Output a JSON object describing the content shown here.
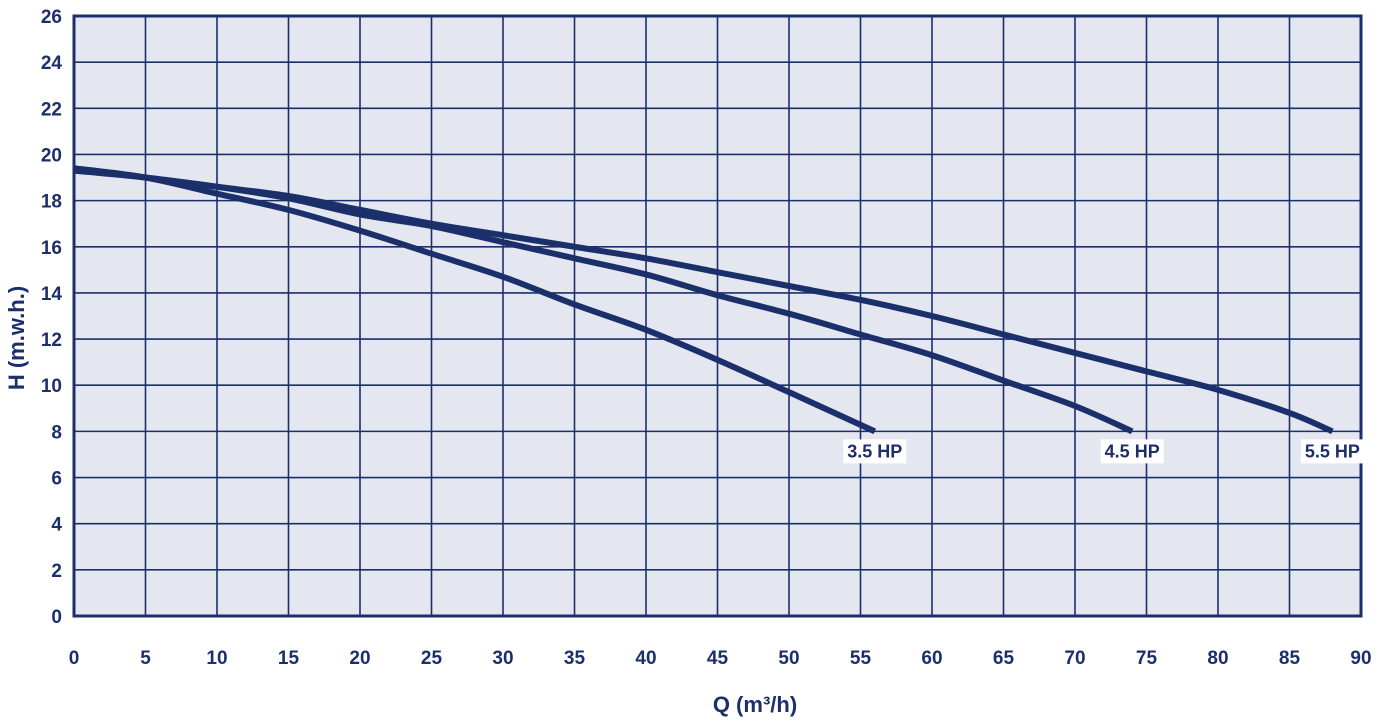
{
  "chart_data": {
    "type": "line",
    "title": "",
    "xlabel": "Q (m³/h)",
    "ylabel": "H (m.w.h.)",
    "xlim": [
      0,
      90
    ],
    "ylim": [
      0,
      26
    ],
    "x_ticks": [
      "0",
      "5",
      "10",
      "15",
      "20",
      "25",
      "30",
      "35",
      "40",
      "45",
      "50",
      "55",
      "60",
      "65",
      "70",
      "75",
      "80",
      "85",
      "90"
    ],
    "y_ticks": [
      "0",
      "2",
      "4",
      "6",
      "8",
      "10",
      "12",
      "14",
      "16",
      "18",
      "20",
      "22",
      "24",
      "26"
    ],
    "grid": true,
    "colors": {
      "line": "#1b2f6b",
      "plot_bg": "#e4e7ef",
      "grid": "#1b2f6b",
      "text": "#1b2f6b"
    },
    "series": [
      {
        "name": "3.5 HP",
        "points": [
          [
            0,
            19.4
          ],
          [
            5,
            19.0
          ],
          [
            10,
            18.3
          ],
          [
            15,
            17.6
          ],
          [
            20,
            16.7
          ],
          [
            25,
            15.7
          ],
          [
            30,
            14.7
          ],
          [
            35,
            13.5
          ],
          [
            40,
            12.4
          ],
          [
            45,
            11.1
          ],
          [
            50,
            9.7
          ],
          [
            56,
            8.0
          ]
        ]
      },
      {
        "name": "4.5 HP",
        "points": [
          [
            0,
            19.4
          ],
          [
            5,
            19.0
          ],
          [
            10,
            18.6
          ],
          [
            15,
            18.1
          ],
          [
            20,
            17.4
          ],
          [
            25,
            16.9
          ],
          [
            30,
            16.2
          ],
          [
            35,
            15.5
          ],
          [
            40,
            14.8
          ],
          [
            45,
            13.9
          ],
          [
            50,
            13.1
          ],
          [
            55,
            12.2
          ],
          [
            60,
            11.3
          ],
          [
            65,
            10.2
          ],
          [
            70,
            9.1
          ],
          [
            74,
            8.0
          ]
        ]
      },
      {
        "name": "5.5 HP",
        "points": [
          [
            0,
            19.3
          ],
          [
            5,
            19.0
          ],
          [
            10,
            18.6
          ],
          [
            15,
            18.2
          ],
          [
            20,
            17.6
          ],
          [
            25,
            17.0
          ],
          [
            30,
            16.5
          ],
          [
            35,
            16.0
          ],
          [
            40,
            15.5
          ],
          [
            45,
            14.9
          ],
          [
            50,
            14.3
          ],
          [
            55,
            13.7
          ],
          [
            60,
            13.0
          ],
          [
            65,
            12.2
          ],
          [
            70,
            11.4
          ],
          [
            75,
            10.6
          ],
          [
            80,
            9.8
          ],
          [
            85,
            8.8
          ],
          [
            88,
            8.0
          ]
        ]
      }
    ]
  }
}
